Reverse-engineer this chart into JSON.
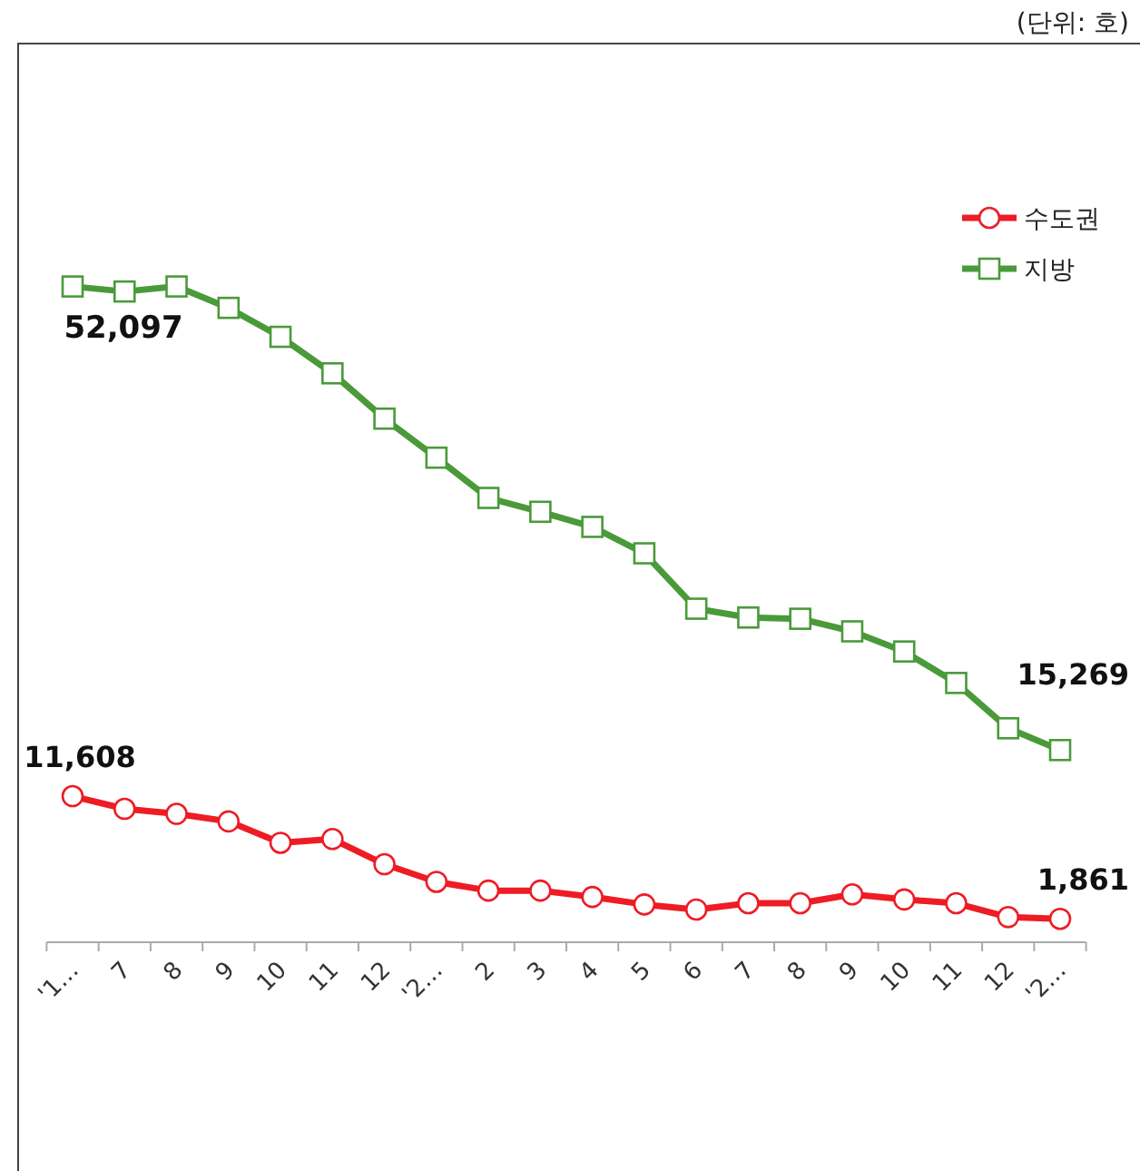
{
  "chart_data": {
    "type": "line",
    "annotations": [
      "(단위: 호)"
    ],
    "categories": [
      "'1…",
      "7",
      "8",
      "9",
      "10",
      "11",
      "12",
      "'2…",
      "2",
      "3",
      "4",
      "5",
      "6",
      "7",
      "8",
      "9",
      "10",
      "11",
      "12",
      "'2…"
    ],
    "series": [
      {
        "name": "수도권",
        "color": "#ee1c25",
        "marker": "circle",
        "values": [
          11608,
          10600,
          10200,
          9600,
          7900,
          8200,
          6200,
          4800,
          4100,
          4100,
          3600,
          3000,
          2600,
          3100,
          3100,
          3800,
          3400,
          3100,
          2000,
          1861
        ],
        "value_labels": [
          "11,608",
          null,
          null,
          null,
          null,
          null,
          null,
          null,
          null,
          null,
          null,
          null,
          null,
          null,
          null,
          null,
          null,
          null,
          null,
          "1,861"
        ]
      },
      {
        "name": "지방",
        "color": "#4a9a3a",
        "marker": "square",
        "values": [
          52097,
          51700,
          52100,
          50400,
          48100,
          45200,
          41600,
          38500,
          35300,
          34200,
          33000,
          30900,
          26500,
          25800,
          25700,
          24700,
          23100,
          20600,
          17000,
          15269
        ],
        "value_labels": [
          "52,097",
          null,
          null,
          null,
          null,
          null,
          null,
          null,
          null,
          null,
          null,
          null,
          null,
          null,
          null,
          null,
          null,
          null,
          null,
          "15,269"
        ]
      }
    ],
    "legend": "top right",
    "grid": false
  }
}
